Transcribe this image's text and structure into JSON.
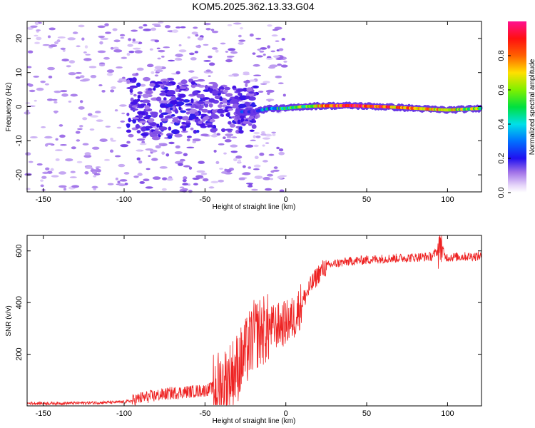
{
  "title": "KOM5.2025.362.13.33.G04",
  "colors": {
    "snr_line": "#ee2222",
    "spectrum_weak": "#d8b8f0",
    "spectrum_mid": "#6a1ee0"
  },
  "chart_data": [
    {
      "type": "heatmap",
      "name": "spectrogram",
      "xlabel": "Height of straight line (km)",
      "ylabel": "Frequency (Hz)",
      "xlim": [
        -160,
        121
      ],
      "ylim": [
        -25,
        25
      ],
      "xticks": [
        -150,
        -100,
        -50,
        0,
        50,
        100
      ],
      "xtick_labels": [
        "-150",
        "-100",
        "-50",
        "0",
        "50",
        "100"
      ],
      "yticks": [
        -20,
        -10,
        0,
        10,
        20
      ],
      "ytick_labels": [
        "-20",
        "-10",
        "0",
        "10",
        "20"
      ],
      "colorbar": {
        "label": "Normalized spectral amplitude",
        "range": [
          0,
          1
        ],
        "ticks": [
          0.0,
          0.2,
          0.4,
          0.6,
          0.8
        ],
        "tick_labels": [
          "0.0",
          "0.2",
          "0.4",
          "0.6",
          "0.8"
        ]
      },
      "ridge": {
        "x": [
          -30,
          -20,
          -10,
          0,
          10,
          20,
          40,
          60,
          80,
          100,
          121
        ],
        "freq_hz": [
          -1.5,
          -1.5,
          -0.5,
          -0.5,
          0,
          0.2,
          0.3,
          0,
          -0.5,
          -1,
          -0.5
        ],
        "amplitude": [
          0.25,
          0.3,
          0.4,
          0.5,
          0.6,
          0.75,
          0.95,
          0.85,
          0.8,
          0.7,
          0.6
        ]
      }
    },
    {
      "type": "line",
      "name": "snr",
      "xlabel": "Height of straight line (km)",
      "ylabel": "SNR (v/v)",
      "xlim": [
        -160,
        121
      ],
      "ylim": [
        0,
        660
      ],
      "xticks": [
        -150,
        -100,
        -50,
        0,
        50,
        100
      ],
      "xtick_labels": [
        "-150",
        "-100",
        "-50",
        "0",
        "50",
        "100"
      ],
      "yticks": [
        200,
        400,
        600
      ],
      "ytick_labels": [
        "200",
        "400",
        "600"
      ],
      "series": [
        {
          "name": "SNR",
          "x": [
            -160,
            -140,
            -120,
            -100,
            -95,
            -90,
            -80,
            -70,
            -60,
            -50,
            -45,
            -40,
            -35,
            -30,
            -25,
            -20,
            -15,
            -10,
            -5,
            0,
            5,
            10,
            15,
            20,
            25,
            30,
            40,
            50,
            60,
            70,
            80,
            90,
            94,
            96,
            98,
            100,
            110,
            121
          ],
          "y": [
            10,
            10,
            12,
            15,
            20,
            30,
            40,
            50,
            55,
            60,
            70,
            80,
            110,
            150,
            200,
            270,
            290,
            300,
            310,
            320,
            340,
            400,
            460,
            510,
            540,
            550,
            560,
            565,
            570,
            572,
            575,
            578,
            600,
            640,
            580,
            575,
            578,
            580
          ]
        }
      ]
    }
  ]
}
